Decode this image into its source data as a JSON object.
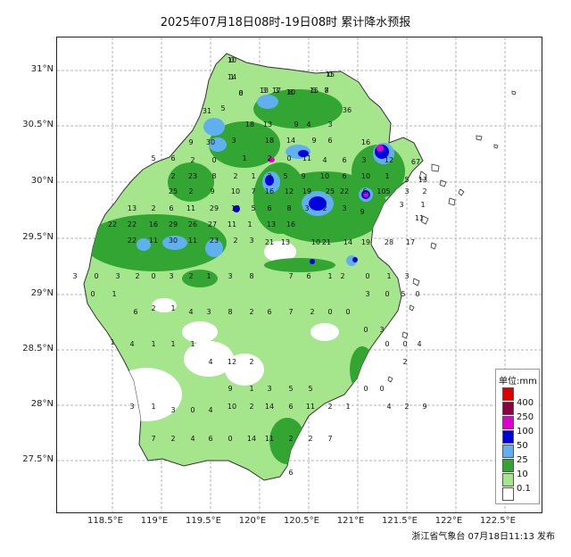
{
  "title": "2025年07月18日08时-19日08时 累计降水预报",
  "issuer": "浙江省气象台 07月18日11:13 发布",
  "latitude_labels": [
    "31°N",
    "30.5°N",
    "30°N",
    "29.5°N",
    "29°N",
    "28.5°N",
    "28°N",
    "27.5°N"
  ],
  "longitude_labels": [
    "118.5°E",
    "119°E",
    "119.5°E",
    "120°E",
    "120.5°E",
    "121°E",
    "121.5°E",
    "122°E",
    "122.5°E"
  ],
  "legend": {
    "title": "单位:mm",
    "items": [
      {
        "label": "400",
        "color": "#e00000"
      },
      {
        "label": "250",
        "color": "#8a0040"
      },
      {
        "label": "100",
        "color": "#e000d0"
      },
      {
        "label": "50",
        "color": "#0000e0"
      },
      {
        "label": "25",
        "color": "#60b0f0"
      },
      {
        "label": "10",
        "color": "#33a533"
      },
      {
        "label": "0.1",
        "color": "#a5e68c"
      },
      {
        "label": "",
        "color": "#ffffff"
      }
    ]
  },
  "station_values": [
    "0",
    "1",
    "0",
    "3",
    "17",
    "8",
    "15",
    "8",
    "15",
    "31",
    "5",
    "18",
    "13",
    "9",
    "4",
    "3",
    "36",
    "9",
    "30",
    "3",
    "18",
    "14",
    "9",
    "6",
    "16",
    "5",
    "6",
    "2",
    "0",
    "1",
    "2",
    "0",
    "11",
    "4",
    "6",
    "3",
    "12",
    "67",
    "2",
    "23",
    "8",
    "2",
    "1",
    "3",
    "5",
    "9",
    "10",
    "6",
    "10",
    "1",
    "5",
    "13",
    "25",
    "2",
    "9",
    "10",
    "7",
    "16",
    "12",
    "19",
    "25",
    "22",
    "6",
    "105",
    "3",
    "2",
    "3",
    "1",
    "11",
    "13",
    "2",
    "6",
    "11",
    "29",
    "12",
    "5",
    "6",
    "8",
    "3",
    "2",
    "3",
    "9",
    "22",
    "22",
    "16",
    "29",
    "26",
    "27",
    "11",
    "1",
    "13",
    "16",
    "22",
    "11",
    "30",
    "11",
    "23",
    "2",
    "3",
    "21",
    "13",
    "10",
    "21",
    "14",
    "19",
    "28",
    "17",
    "3",
    "0",
    "3",
    "2",
    "0",
    "3",
    "2",
    "1",
    "3",
    "8",
    "7",
    "6",
    "1",
    "2",
    "0",
    "1",
    "3",
    "0",
    "5",
    "0",
    "3",
    "0",
    "1",
    "6",
    "2",
    "1",
    "4",
    "3",
    "8",
    "2",
    "6",
    "7",
    "2",
    "0",
    "0",
    "0",
    "3",
    "0",
    "0",
    "4",
    "2",
    "1",
    "4",
    "1",
    "1",
    "1",
    "4",
    "12",
    "2",
    "3",
    "1",
    "3",
    "0",
    "4",
    "10",
    "2",
    "14",
    "6",
    "11",
    "2",
    "1",
    "0",
    "0",
    "4",
    "2",
    "9",
    "9",
    "1",
    "3",
    "5",
    "5",
    "7",
    "2",
    "4",
    "6",
    "0",
    "14",
    "11",
    "2",
    "2",
    "7",
    "6",
    "10",
    "14",
    "8",
    "13",
    "3",
    "10",
    "5",
    "7",
    "0"
  ]
}
